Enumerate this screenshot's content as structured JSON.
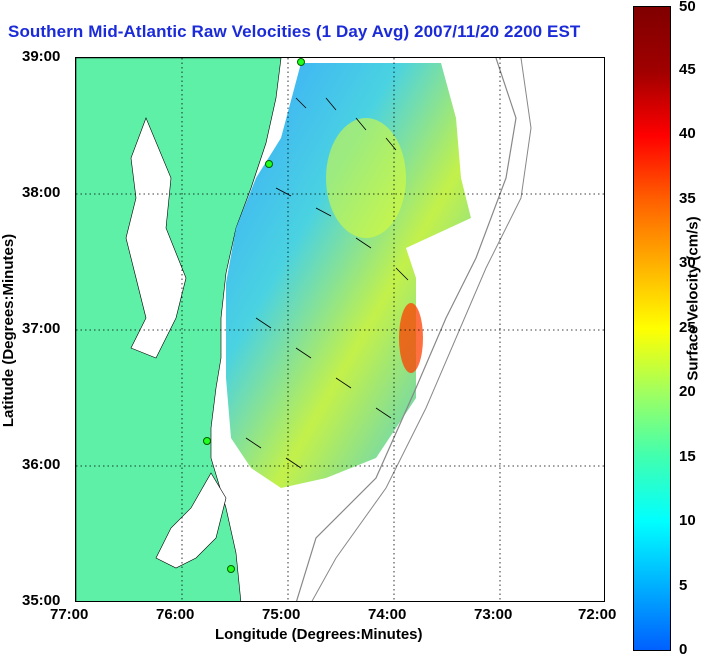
{
  "title": "Southern Mid-Atlantic Raw Velocities (1 Day Avg) 2007/11/20 2200 EST",
  "map": {
    "x_ticks": [
      "77:00",
      "76:00",
      "75:00",
      "74:00",
      "73:00",
      "72:00"
    ],
    "y_ticks": [
      "39:00",
      "38:00",
      "37:00",
      "36:00",
      "35:00"
    ],
    "xlabel": "Longitude (Degrees:Minutes)",
    "ylabel": "Latitude (Degrees:Minutes)",
    "lon_range": [
      -77,
      -72
    ],
    "lat_range": [
      35,
      39
    ],
    "colors": {
      "land": "#5ff0a8",
      "grid": "#000000",
      "coast": "#000000"
    }
  },
  "colorbar": {
    "label": "Surface Velocity (cm/s)",
    "min": 0,
    "max": 50,
    "ticks": [
      "50",
      "45",
      "40",
      "35",
      "30",
      "25",
      "20",
      "15",
      "10",
      "5",
      "0"
    ],
    "colors": [
      "#0060ff",
      "#00b0ff",
      "#00ffff",
      "#40ffb0",
      "#a0ff60",
      "#ffff00",
      "#ffb000",
      "#ff6000",
      "#ff0000",
      "#a00000",
      "#800000"
    ]
  }
}
